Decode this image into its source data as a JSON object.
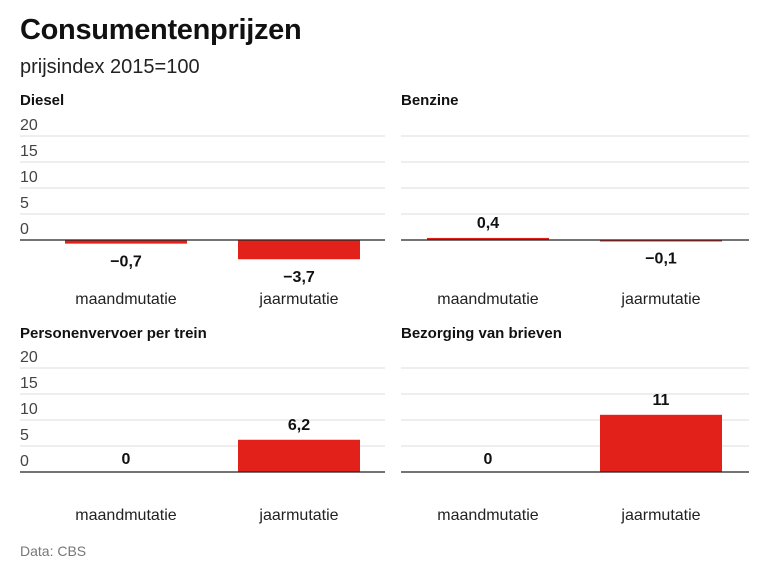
{
  "title": "Consumentenprijzen",
  "subtitle": "prijsindex 2015=100",
  "source": "Data: CBS",
  "colors": {
    "bar": "#e3211b",
    "grid": "#dddddd",
    "axis": "#222222"
  },
  "chart_data": [
    {
      "type": "bar",
      "title": "Diesel",
      "categories": [
        "maandmutatie",
        "jaarmutatie"
      ],
      "values": [
        -0.7,
        -3.7
      ],
      "value_labels": [
        "−0,7",
        "−3,7"
      ],
      "yticks": [
        "0",
        "5",
        "10",
        "15",
        "20"
      ],
      "ylim": [
        0,
        20
      ],
      "grid": true
    },
    {
      "type": "bar",
      "title": "Benzine",
      "categories": [
        "maandmutatie",
        "jaarmutatie"
      ],
      "values": [
        0.4,
        -0.1
      ],
      "value_labels": [
        "0,4",
        "−0,1"
      ],
      "yticks": [],
      "ylim": [
        0,
        20
      ],
      "grid": true
    },
    {
      "type": "bar",
      "title": "Personenvervoer per trein",
      "categories": [
        "maandmutatie",
        "jaarmutatie"
      ],
      "values": [
        0,
        6.2
      ],
      "value_labels": [
        "0",
        "6,2"
      ],
      "yticks": [
        "0",
        "5",
        "10",
        "15",
        "20"
      ],
      "ylim": [
        0,
        20
      ],
      "grid": true
    },
    {
      "type": "bar",
      "title": "Bezorging van brieven",
      "categories": [
        "maandmutatie",
        "jaarmutatie"
      ],
      "values": [
        0,
        11
      ],
      "value_labels": [
        "0",
        "11"
      ],
      "yticks": [],
      "ylim": [
        0,
        20
      ],
      "grid": true
    }
  ]
}
